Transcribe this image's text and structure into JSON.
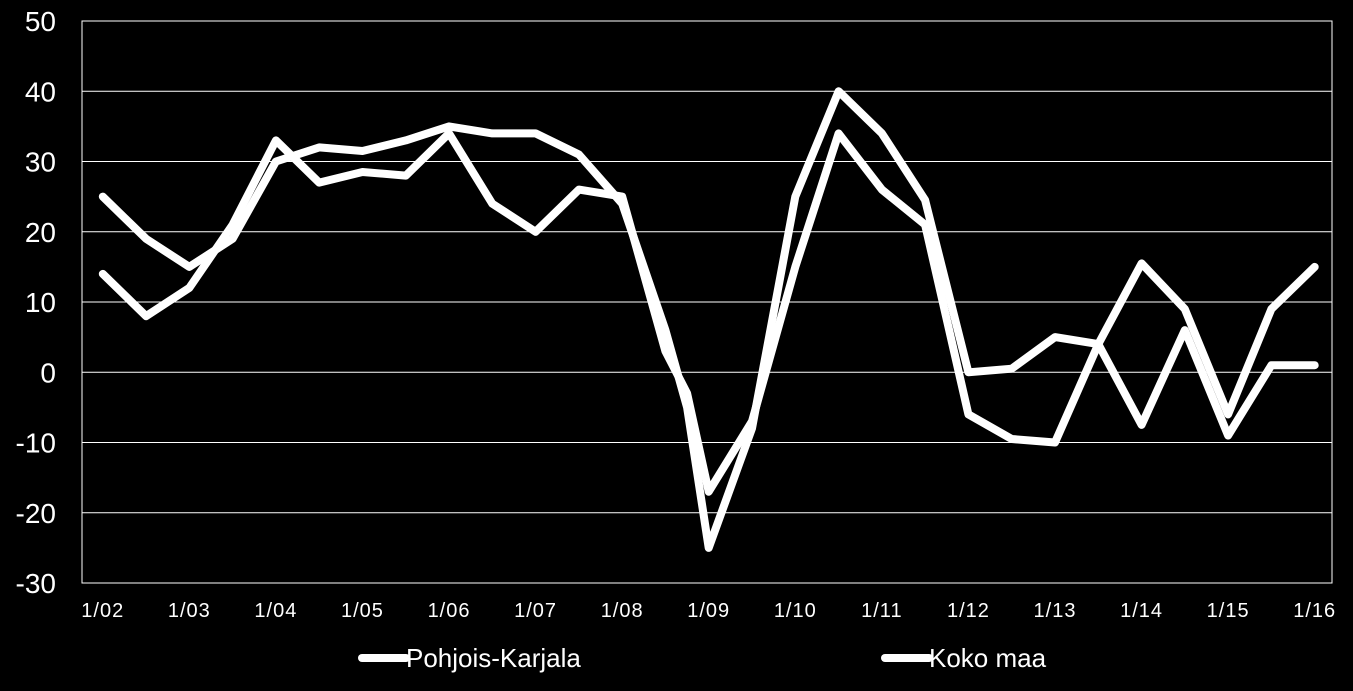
{
  "chart_data": {
    "type": "line",
    "title": "",
    "xlabel": "",
    "ylabel": "",
    "ylim": [
      -30,
      50
    ],
    "yticks": [
      "50",
      "40",
      "30",
      "20",
      "10",
      "0",
      "-10",
      "-20",
      "-30"
    ],
    "ytick_values": [
      50,
      40,
      30,
      20,
      10,
      0,
      -10,
      -20,
      -30
    ],
    "xticks": [
      "1/02",
      "1/03",
      "1/04",
      "1/05",
      "1/06",
      "1/07",
      "1/08",
      "1/09",
      "1/10",
      "1/11",
      "1/12",
      "1/13",
      "1/14",
      "1/15",
      "1/16"
    ],
    "grid": true,
    "legend_position": "bottom",
    "colors": {
      "background": "#000000",
      "foreground": "#ffffff",
      "series": "#ffffff"
    },
    "x": [
      2002.0,
      2002.5,
      2003.0,
      2003.5,
      2004.0,
      2004.5,
      2005.0,
      2005.5,
      2006.0,
      2006.5,
      2007.0,
      2007.5,
      2008.0,
      2008.5,
      2008.75,
      2009.0,
      2009.5,
      2010.0,
      2010.5,
      2011.0,
      2011.5,
      2012.0,
      2012.5,
      2013.0,
      2013.5,
      2014.0,
      2014.5,
      2015.0,
      2015.5,
      2016.0
    ],
    "series": [
      {
        "name": "Pohjois-Karjala",
        "values": [
          14,
          8,
          12,
          21,
          33,
          27,
          28.5,
          28,
          34,
          24,
          20,
          26,
          25,
          3,
          -3,
          -17,
          -7,
          15,
          34,
          26,
          21,
          -6,
          -9.5,
          -10,
          4,
          15.5,
          9,
          -6,
          9,
          15
        ]
      },
      {
        "name": "Koko maa",
        "values": [
          25,
          19,
          15,
          19,
          30,
          32,
          31.5,
          33,
          35,
          34,
          34,
          31,
          24,
          6,
          -5,
          -25,
          -8,
          25,
          40,
          34,
          24.5,
          0,
          0.5,
          5,
          4,
          -7.5,
          6,
          -9,
          1,
          1
        ]
      }
    ]
  }
}
